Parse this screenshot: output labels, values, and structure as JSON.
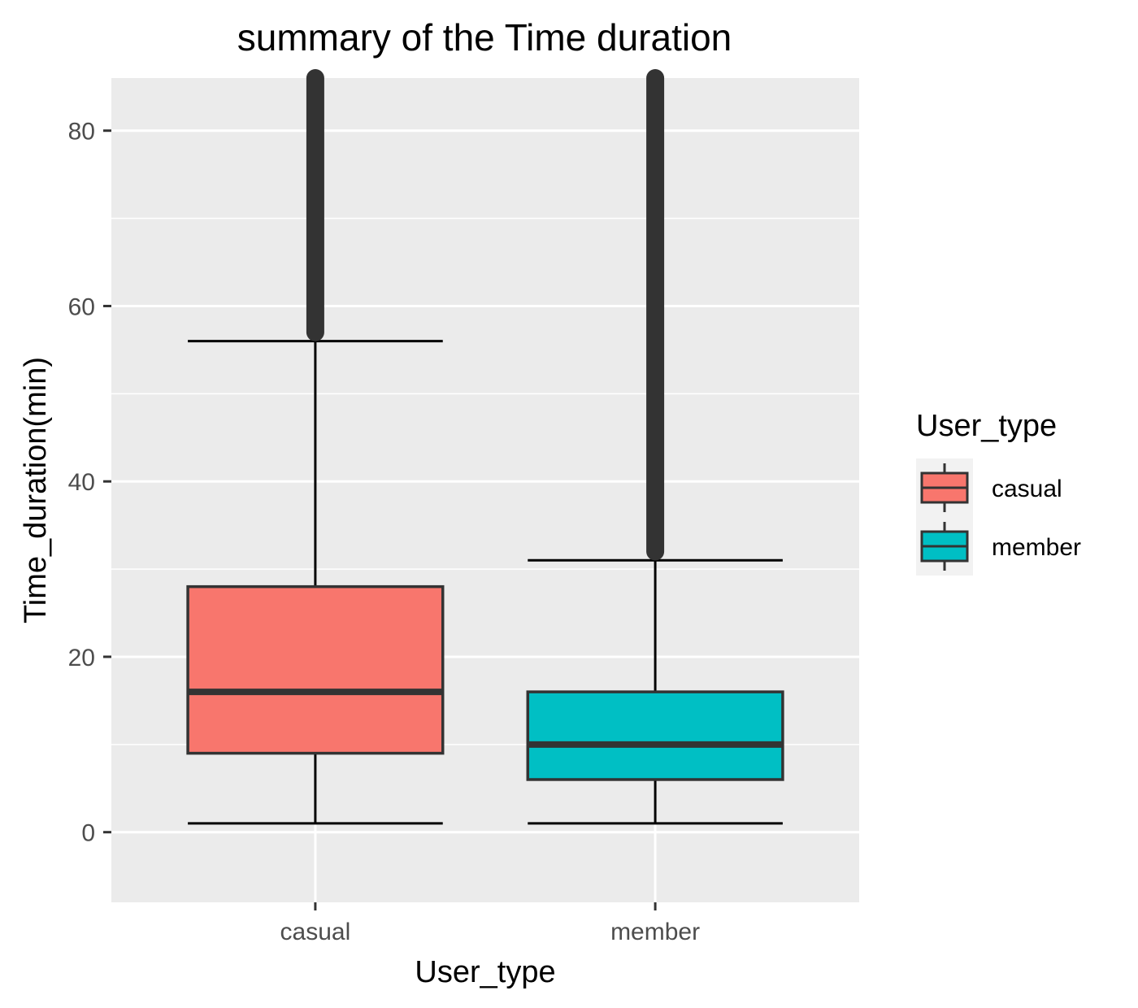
{
  "chart_data": {
    "type": "boxplot",
    "title": "summary of the  Time duration",
    "xlabel": "User_type",
    "ylabel": "Time_duration(min)",
    "ylim": [
      -8,
      86
    ],
    "yticks": [
      0,
      20,
      40,
      60,
      80
    ],
    "grid": true,
    "legend": {
      "title": "User_type",
      "placement": "right",
      "entries": [
        "casual",
        "member"
      ]
    },
    "categories": [
      "casual",
      "member"
    ],
    "series": [
      {
        "name": "casual",
        "color": "#F8766D",
        "whisker_low": 1,
        "q1": 9,
        "median": 16,
        "q3": 28,
        "whisker_high": 56,
        "outliers_from": 57,
        "outliers_to": 86
      },
      {
        "name": "member",
        "color": "#00BFC4",
        "whisker_low": 1,
        "q1": 6,
        "median": 10,
        "q3": 16,
        "whisker_high": 31,
        "outliers_from": 32,
        "outliers_to": 86
      }
    ]
  }
}
